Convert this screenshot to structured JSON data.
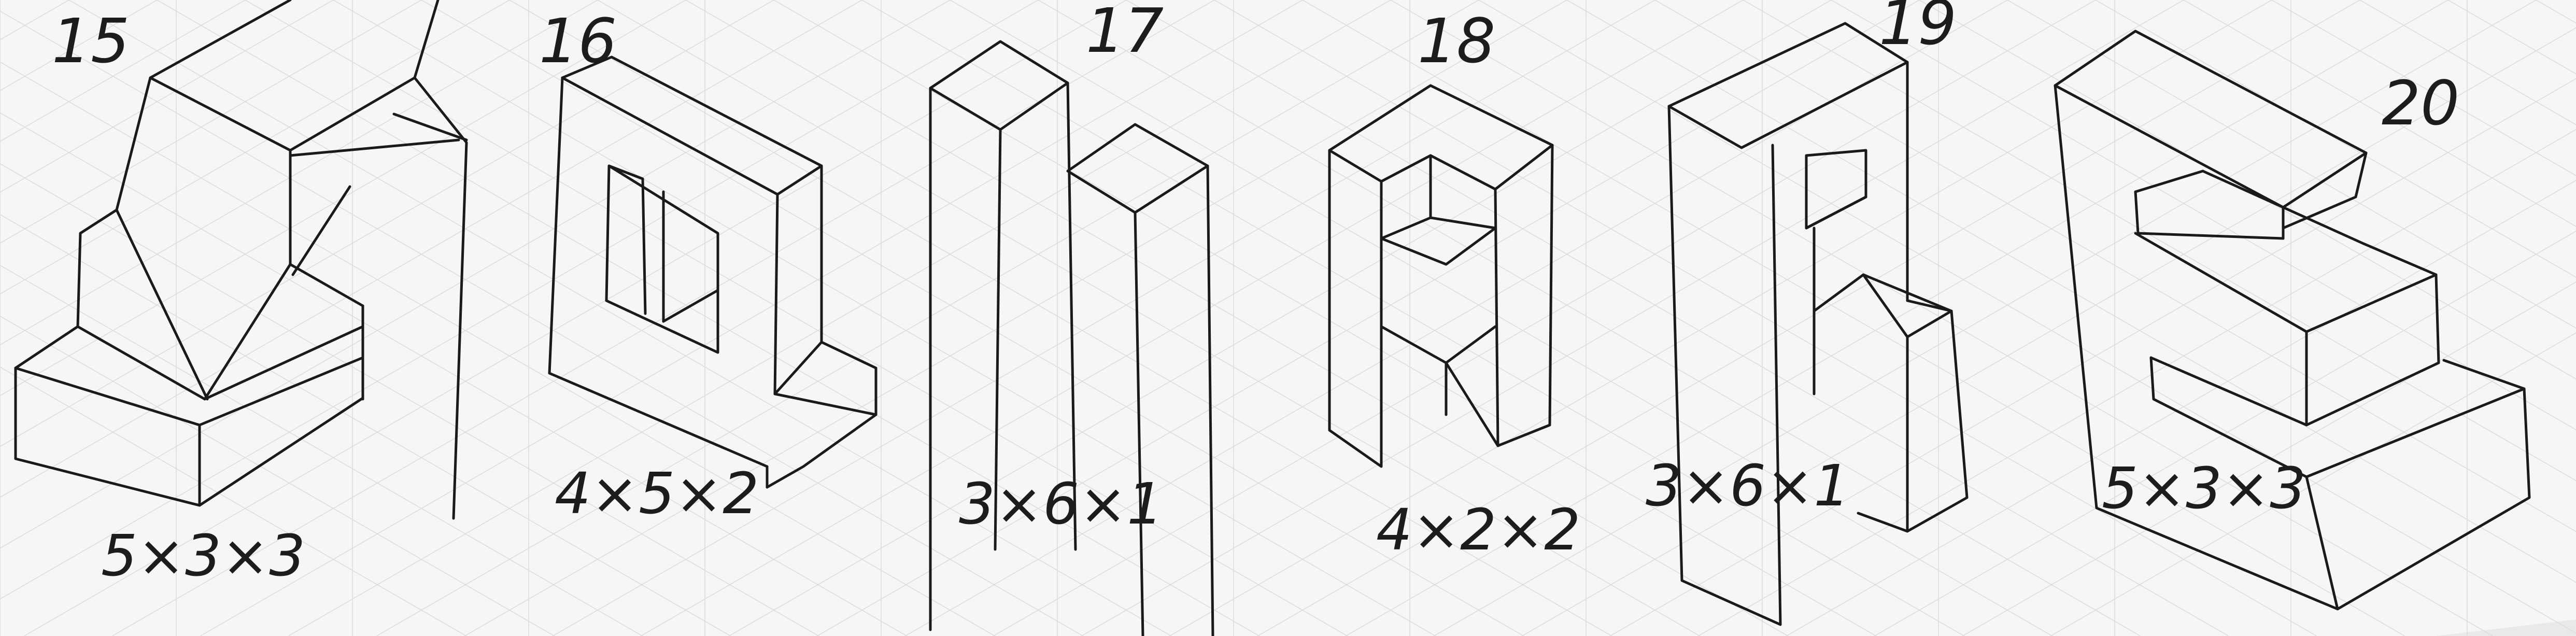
{
  "figures": [
    {
      "number": "15",
      "dimensions": "5×3×3"
    },
    {
      "number": "16",
      "dimensions": "4×5×2"
    },
    {
      "number": "17",
      "dimensions": "3×6×1"
    },
    {
      "number": "18",
      "dimensions": "4×2×2"
    },
    {
      "number": "19",
      "dimensions": "3×6×1"
    },
    {
      "number": "20",
      "dimensions": "5×3×3"
    }
  ],
  "colors": {
    "paper": "#f6f6f4",
    "ink": "#1a1a1a",
    "grid": "#dcdcda"
  }
}
